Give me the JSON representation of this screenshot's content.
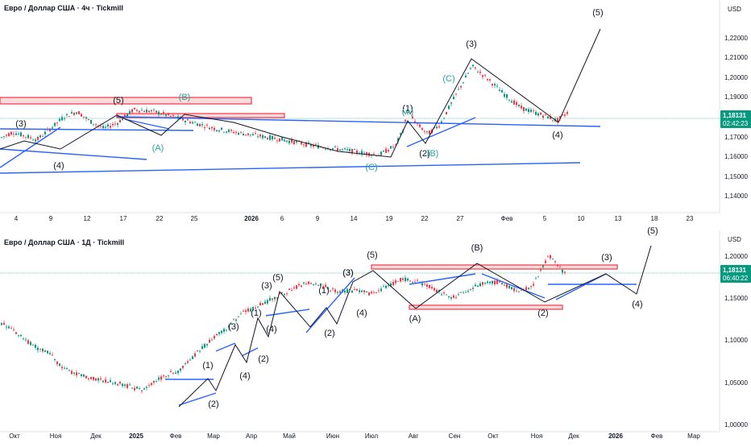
{
  "chart_data": [
    {
      "type": "candlestick",
      "title": "Евро / Доллар США · 4ч · Tickmill",
      "currency": "USD",
      "last_price": "1,18131",
      "countdown": "02:42:23",
      "ylim": [
        1.135,
        1.235
      ],
      "y_ticks": [
        "1,22000",
        "1,21000",
        "1,20000",
        "1,19000",
        "1,18000",
        "1,17000",
        "1,16000",
        "1,15000",
        "1,14000"
      ],
      "x_ticks": [
        "4",
        "9",
        "12",
        "17",
        "22",
        "25",
        "2026",
        "6",
        "9",
        "14",
        "19",
        "22",
        "27",
        "Фев",
        "5",
        "10",
        "13",
        "18",
        "23"
      ],
      "price_path": [
        1.167,
        1.17,
        1.168,
        1.166,
        1.172,
        1.178,
        1.181,
        1.176,
        1.172,
        1.175,
        1.182,
        1.181,
        1.178,
        1.175,
        1.172,
        1.17,
        1.168,
        1.166,
        1.163,
        1.161,
        1.159,
        1.158,
        1.163,
        1.172,
        1.181,
        1.175,
        1.169,
        1.174,
        1.19,
        1.205,
        1.198,
        1.19,
        1.183,
        1.18,
        1.178,
        1.176,
        1.181
      ],
      "wave_labels": [
        "(3)",
        "(4)",
        "(5)",
        "(B)",
        "(A)",
        "(C)",
        "(1)",
        "(A)",
        "(2)",
        "(B)",
        "(C)",
        "(3)",
        "(4)",
        "(5)"
      ],
      "colors": {
        "up": "#089981",
        "down": "#f23645",
        "wave_line": "#131722",
        "trend_line": "#2962ff",
        "zone": "#f23645",
        "fib_label": "#26a69a",
        "last_price": "#089981"
      }
    },
    {
      "type": "candlestick",
      "title": "Евро / Доллар США · 1Д · Tickmill",
      "currency": "USD",
      "last_price": "1,18131",
      "countdown": "06:40:22",
      "ylim": [
        0.995,
        1.225
      ],
      "y_ticks": [
        "1,20000",
        "1,15000",
        "1,10000",
        "1,05000",
        "1,00000"
      ],
      "x_ticks": [
        "Окт",
        "Ноя",
        "Дек",
        "2025",
        "Фев",
        "Мар",
        "Апр",
        "Май",
        "Июн",
        "Июл",
        "Авг",
        "Сен",
        "Окт",
        "Ноя",
        "Дек",
        "2026",
        "Фев",
        "Мар"
      ],
      "price_path": [
        1.118,
        1.11,
        1.095,
        1.085,
        1.078,
        1.06,
        1.05,
        1.045,
        1.04,
        1.035,
        1.03,
        1.04,
        1.05,
        1.055,
        1.075,
        1.095,
        1.11,
        1.13,
        1.14,
        1.15,
        1.16,
        1.17,
        1.165,
        1.158,
        1.16,
        1.155,
        1.165,
        1.175,
        1.17,
        1.16,
        1.15,
        1.16,
        1.17,
        1.17,
        1.16,
        1.165,
        1.205,
        1.181
      ],
      "wave_labels": [
        "(1)",
        "(2)",
        "(3)",
        "(4)",
        "(1)",
        "(3)",
        "(4)",
        "(2)",
        "(3)",
        "(5)",
        "(1)",
        "(2)",
        "(3)",
        "(4)",
        "(5)",
        "(A)",
        "(B)",
        "(2)",
        "(3)",
        "(4)",
        "(5)"
      ],
      "colors": {
        "up": "#089981",
        "down": "#f23645",
        "wave_line": "#131722",
        "trend_line": "#2962ff",
        "zone": "#f23645",
        "last_price": "#089981"
      }
    }
  ]
}
